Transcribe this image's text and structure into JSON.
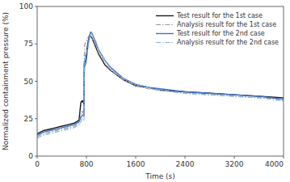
{
  "chart_data": {
    "type": "line",
    "xlabel": "Time (s)",
    "ylabel": "Normalized containment pressure (%)",
    "xlim": [
      0,
      4000
    ],
    "ylim": [
      0,
      100
    ],
    "xticks": [
      0,
      800,
      1600,
      2400,
      3200,
      4000
    ],
    "yticks": [
      0,
      25,
      50,
      75,
      100
    ],
    "grid": false,
    "legend": "upper right",
    "series": [
      {
        "name": "Test result for the 1st case",
        "color": "#1a1a1a",
        "line_style": "solid",
        "x": [
          0,
          100,
          200,
          300,
          400,
          500,
          600,
          680,
          710,
          730,
          740,
          750,
          755,
          760,
          765,
          770,
          780,
          790,
          800,
          810,
          830,
          850,
          870,
          890,
          920,
          950,
          1000,
          1100,
          1200,
          1400,
          1600,
          1800,
          2000,
          2400,
          2800,
          3200,
          3600,
          4000
        ],
        "values": [
          15,
          17,
          18,
          19,
          20,
          21,
          22,
          24,
          36,
          37,
          36,
          37,
          36,
          34,
          62,
          63,
          63,
          64,
          68,
          72,
          77,
          80,
          80,
          79,
          76,
          73,
          68,
          61,
          57,
          51,
          47,
          46,
          44,
          43,
          42,
          41,
          40,
          39
        ]
      },
      {
        "name": "Analysis result for the 1st case",
        "color": "#999999",
        "line_style": "dashdot",
        "x": [
          0,
          100,
          200,
          300,
          400,
          500,
          600,
          680,
          710,
          730,
          740,
          750,
          755,
          760,
          765,
          770,
          780,
          790,
          800,
          810,
          820,
          840,
          860,
          880,
          920,
          950,
          1000,
          1100,
          1200,
          1400,
          1600,
          1800,
          2000,
          2400,
          2800,
          3200,
          3600,
          4000
        ],
        "values": [
          13,
          15,
          16,
          17,
          18,
          19,
          20,
          22,
          28,
          30,
          29,
          30,
          29,
          28,
          65,
          74,
          75,
          76,
          77,
          78,
          79,
          80,
          80,
          79,
          77,
          74,
          69,
          62,
          57,
          51,
          47,
          45,
          44,
          42,
          41,
          40,
          39,
          38
        ]
      },
      {
        "name": "Test result for the 2nd case",
        "color": "#4472C4",
        "line_style": "solid",
        "x": [
          0,
          100,
          200,
          300,
          400,
          500,
          600,
          680,
          710,
          730,
          740,
          750,
          755,
          760,
          765,
          770,
          780,
          790,
          800,
          810,
          830,
          850,
          870,
          890,
          920,
          950,
          1000,
          1100,
          1200,
          1400,
          1600,
          1800,
          2000,
          2400,
          2800,
          3200,
          3600,
          4000
        ],
        "values": [
          14,
          16,
          17,
          18,
          19,
          20,
          21,
          23,
          26,
          27,
          27,
          28,
          27,
          27,
          55,
          60,
          61,
          62,
          65,
          68,
          76,
          81,
          83,
          82,
          79,
          76,
          71,
          64,
          59,
          52,
          48,
          46,
          45,
          43,
          42,
          41,
          40,
          38
        ]
      },
      {
        "name": "Analysis result for the 2nd case",
        "color": "#7EB3E0",
        "line_style": "dashdot",
        "x": [
          0,
          100,
          200,
          300,
          400,
          500,
          600,
          680,
          710,
          730,
          740,
          750,
          755,
          760,
          765,
          770,
          780,
          790,
          800,
          810,
          820,
          840,
          860,
          880,
          920,
          950,
          1000,
          1100,
          1200,
          1400,
          1600,
          1800,
          2000,
          2400,
          2800,
          3200,
          3600,
          4000
        ],
        "values": [
          12,
          14,
          15,
          16,
          17,
          18,
          19,
          21,
          23,
          25,
          25,
          25,
          25,
          24,
          60,
          66,
          67,
          68,
          69,
          70,
          72,
          76,
          81,
          82,
          79,
          77,
          71,
          64,
          58,
          52,
          48,
          46,
          44,
          42,
          41,
          40,
          39,
          37
        ]
      }
    ]
  }
}
